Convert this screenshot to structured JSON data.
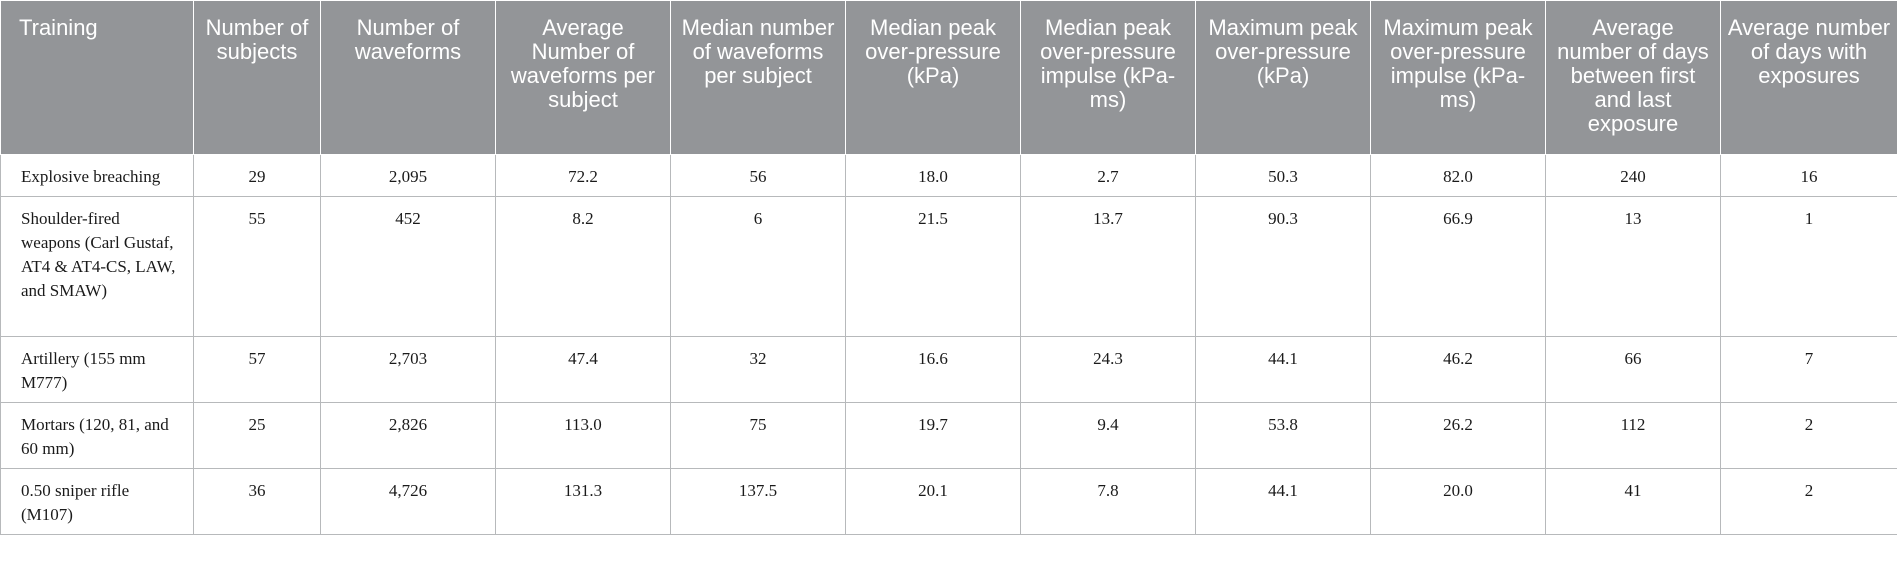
{
  "table": {
    "headers": [
      "Training",
      "Number of subjects",
      "Number of waveforms",
      "Average Number of waveforms per subject",
      "Median number of waveforms per subject",
      "Median peak over-pressure (kPa)",
      "Median peak over-pressure impulse (kPa-ms)",
      "Maximum peak over-pressure (kPa)",
      "Maximum peak over-pressure impulse (kPa-ms)",
      "Average number of days between first and last exposure",
      "Average number of days with exposures"
    ],
    "rows": [
      [
        "Explosive breaching",
        "29",
        "2,095",
        "72.2",
        "56",
        "18.0",
        "2.7",
        "50.3",
        "82.0",
        "240",
        "16"
      ],
      [
        "Shoulder-fired weapons (Carl Gustaf, AT4 & AT4-CS, LAW, and SMAW)",
        "55",
        "452",
        "8.2",
        "6",
        "21.5",
        "13.7",
        "90.3",
        "66.9",
        "13",
        "1"
      ],
      [
        "Artillery (155 mm M777)",
        "57",
        "2,703",
        "47.4",
        "32",
        "16.6",
        "24.3",
        "44.1",
        "46.2",
        "66",
        "7"
      ],
      [
        "Mortars (120, 81, and 60 mm)",
        "25",
        "2,826",
        "113.0",
        "75",
        "19.7",
        "9.4",
        "53.8",
        "26.2",
        "112",
        "2"
      ],
      [
        "0.50 sniper rifle (M107)",
        "36",
        "4,726",
        "131.3",
        "137.5",
        "20.1",
        "7.8",
        "44.1",
        "20.0",
        "41",
        "2"
      ]
    ]
  },
  "colors": {
    "header_bg": "#939598",
    "header_text": "#ffffff",
    "grid": "#b7b9bb"
  }
}
